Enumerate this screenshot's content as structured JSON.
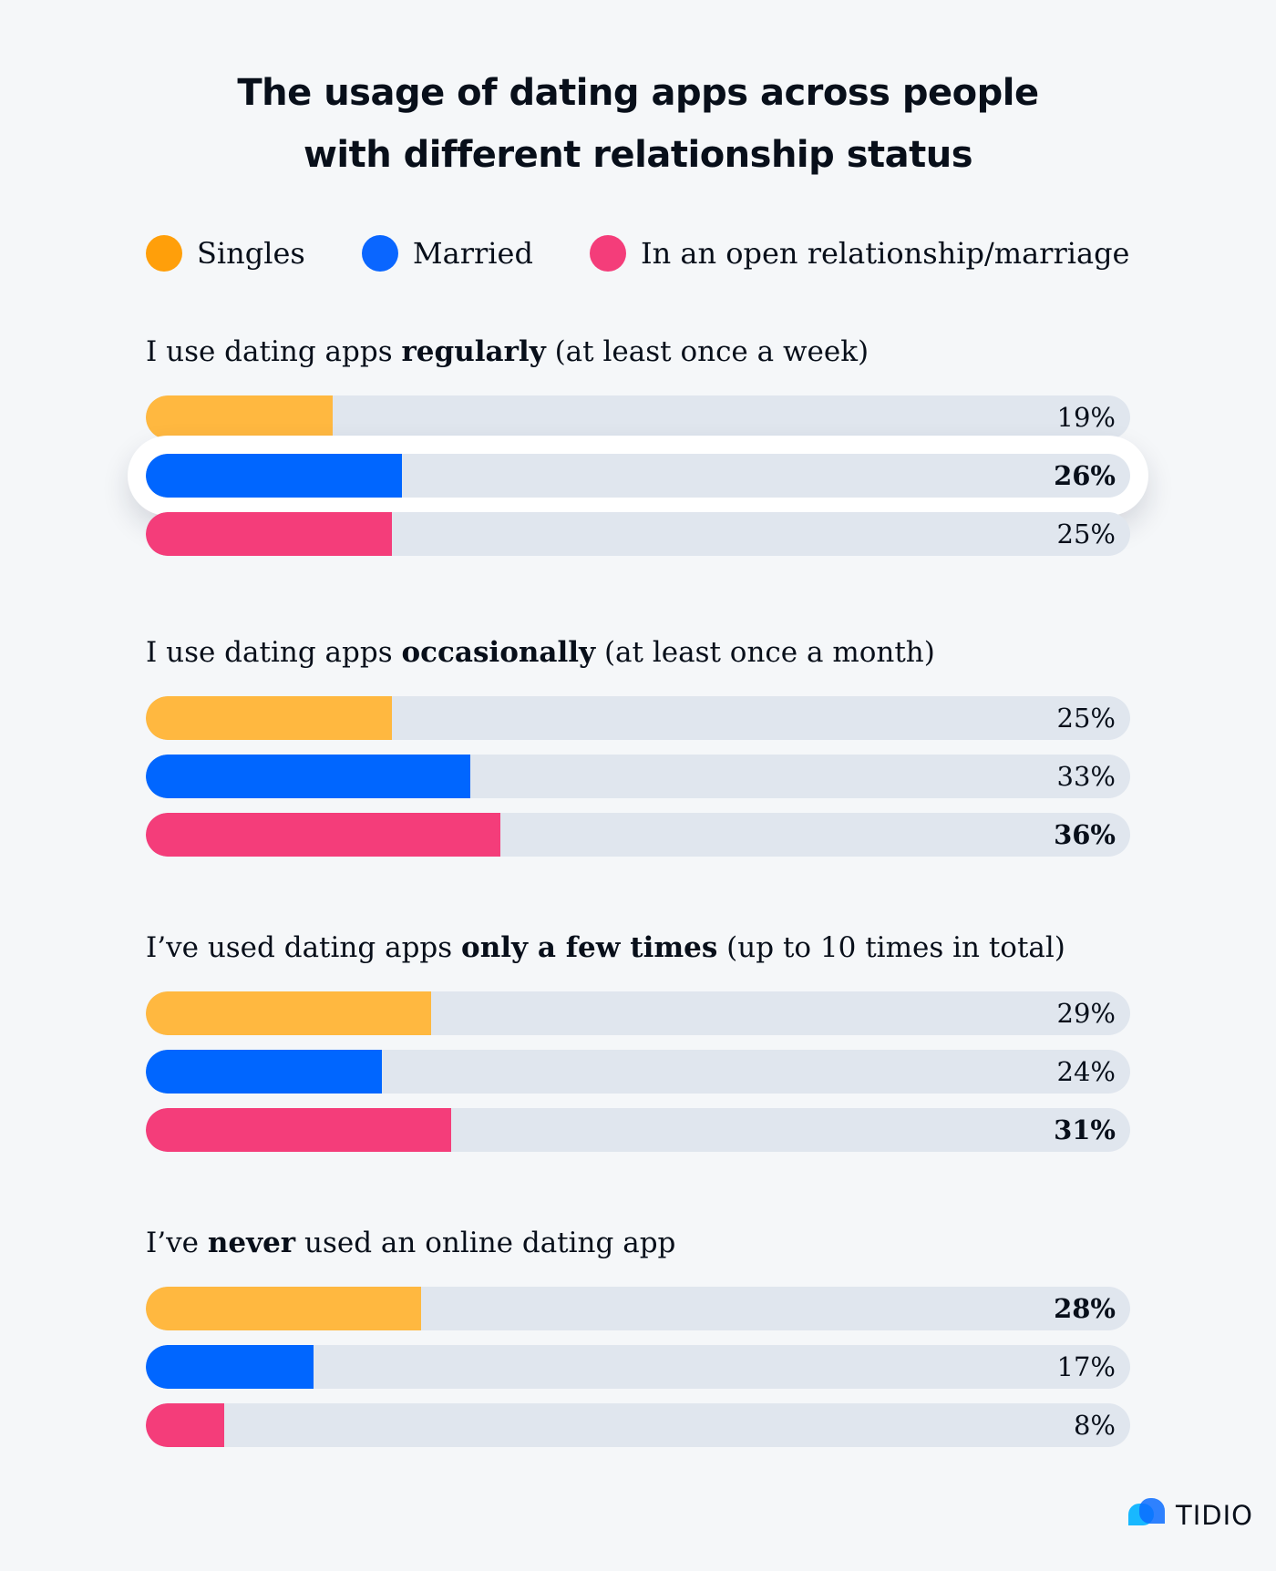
{
  "chart_data": {
    "type": "bar",
    "orientation": "horizontal",
    "title": "The usage of dating apps across people with different relationship status",
    "title_lines": [
      "The usage of dating apps across people",
      "with different relationship status"
    ],
    "legend_position": "top",
    "grid": false,
    "xlim": [
      0,
      100
    ],
    "series_names": [
      "Singles",
      "Married",
      "In an open relationship/marriage"
    ],
    "colors": [
      "#ffb840",
      "#0066ff",
      "#f43d7a"
    ],
    "legend_colors": [
      "#ff9f0a",
      "#0a66ff",
      "#f43d7a"
    ],
    "categories": [
      {
        "pre": "I use dating apps ",
        "bold": "regularly",
        "post": " (at least once a week)"
      },
      {
        "pre": "I use dating apps ",
        "bold": "occasionally",
        "post": " (at least once a month)"
      },
      {
        "pre": "I’ve used dating apps ",
        "bold": "only a few times",
        "post": " (up to 10 times in total)"
      },
      {
        "pre": "I’ve ",
        "bold": "never",
        "post": " used an online dating app"
      }
    ],
    "series": [
      {
        "name": "Singles",
        "values": [
          19,
          25,
          29,
          28
        ]
      },
      {
        "name": "Married",
        "values": [
          26,
          33,
          24,
          17
        ]
      },
      {
        "name": "In an open relationship/marriage",
        "values": [
          25,
          36,
          31,
          8
        ]
      }
    ],
    "value_labels": [
      [
        "19%",
        "26%",
        "25%"
      ],
      [
        "25%",
        "33%",
        "36%"
      ],
      [
        "29%",
        "24%",
        "31%"
      ],
      [
        "28%",
        "17%",
        "8%"
      ]
    ],
    "highlighted": {
      "category": 0,
      "series": 1
    }
  },
  "brand": {
    "name": "TIDIO"
  }
}
